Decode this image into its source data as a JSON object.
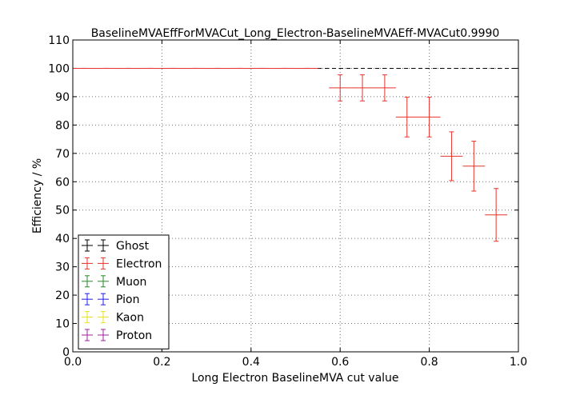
{
  "chart_data": {
    "type": "scatter",
    "title": "BaselineMVAEffForMVACut_Long_Electron-BaselineMVAEff-MVACut0.9990",
    "xlabel": "Long Electron BaselineMVA cut value",
    "ylabel": "Efficiency / %",
    "xlim": [
      0.0,
      1.0
    ],
    "ylim": [
      0,
      110
    ],
    "xticks": [
      "0.0",
      "0.2",
      "0.4",
      "0.6",
      "0.8",
      "1.0"
    ],
    "yticks": [
      "0",
      "10",
      "20",
      "30",
      "40",
      "50",
      "60",
      "70",
      "80",
      "90",
      "100",
      "110"
    ],
    "grid": true,
    "legend_position": "lower-left",
    "reference_line": {
      "y": 100,
      "style": "dashed",
      "color": "#000000"
    },
    "series": [
      {
        "name": "Ghost",
        "color": "#000000",
        "points": []
      },
      {
        "name": "Electron",
        "color": "#e8322b",
        "points": [
          {
            "x": 0.025,
            "xerr": 0.025,
            "y": 100,
            "yerr": 0
          },
          {
            "x": 0.075,
            "xerr": 0.025,
            "y": 100,
            "yerr": 0
          },
          {
            "x": 0.125,
            "xerr": 0.025,
            "y": 100,
            "yerr": 0
          },
          {
            "x": 0.175,
            "xerr": 0.025,
            "y": 100,
            "yerr": 0
          },
          {
            "x": 0.225,
            "xerr": 0.025,
            "y": 100,
            "yerr": 0
          },
          {
            "x": 0.275,
            "xerr": 0.025,
            "y": 100,
            "yerr": 0
          },
          {
            "x": 0.325,
            "xerr": 0.025,
            "y": 100,
            "yerr": 0
          },
          {
            "x": 0.375,
            "xerr": 0.025,
            "y": 100,
            "yerr": 0
          },
          {
            "x": 0.425,
            "xerr": 0.025,
            "y": 100,
            "yerr": 0
          },
          {
            "x": 0.475,
            "xerr": 0.025,
            "y": 100,
            "yerr": 0
          },
          {
            "x": 0.525,
            "xerr": 0.025,
            "y": 100,
            "yerr": 0
          },
          {
            "x": 0.6,
            "xerr": 0.025,
            "y": 93.1,
            "yerr": 4.6
          },
          {
            "x": 0.65,
            "xerr": 0.025,
            "y": 93.1,
            "yerr": 4.6
          },
          {
            "x": 0.7,
            "xerr": 0.025,
            "y": 93.1,
            "yerr": 4.6
          },
          {
            "x": 0.75,
            "xerr": 0.025,
            "y": 82.8,
            "yerr": 7.0
          },
          {
            "x": 0.8,
            "xerr": 0.025,
            "y": 82.8,
            "yerr": 7.0
          },
          {
            "x": 0.85,
            "xerr": 0.025,
            "y": 69.0,
            "yerr": 8.6
          },
          {
            "x": 0.9,
            "xerr": 0.025,
            "y": 65.5,
            "yerr": 8.8
          },
          {
            "x": 0.95,
            "xerr": 0.025,
            "y": 48.3,
            "yerr": 9.3
          }
        ]
      },
      {
        "name": "Muon",
        "color": "#2a8a2a",
        "points": []
      },
      {
        "name": "Pion",
        "color": "#2020e8",
        "points": []
      },
      {
        "name": "Kaon",
        "color": "#e8e020",
        "points": []
      },
      {
        "name": "Proton",
        "color": "#a020a0",
        "points": []
      }
    ]
  }
}
